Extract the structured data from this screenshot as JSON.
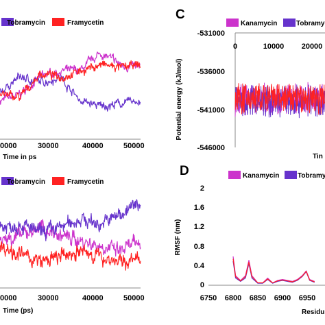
{
  "chart_data": [
    {
      "id": "A",
      "type": "line",
      "legend": [
        "Tobramycin",
        "Framycetin"
      ],
      "xlabel": "Time in ps",
      "x_ticks": [
        "0000",
        "30000",
        "40000",
        "50000"
      ],
      "xlim": [
        15000,
        50000
      ],
      "series": [
        {
          "name": "Kanamycin",
          "color": "#cc33cc",
          "shape": "kanamycin-rmsd",
          "points": [
            [
              15000,
              0.3
            ],
            [
              20000,
              0.32
            ],
            [
              25000,
              0.38
            ],
            [
              30000,
              0.4
            ],
            [
              35000,
              0.4
            ],
            [
              40000,
              0.46
            ],
            [
              45000,
              0.42
            ],
            [
              50000,
              0.41
            ]
          ]
        },
        {
          "name": "Tobramycin",
          "color": "#6633cc",
          "shape": "tobramycin-rmsd",
          "points": [
            [
              15000,
              0.33
            ],
            [
              20000,
              0.38
            ],
            [
              25000,
              0.36
            ],
            [
              30000,
              0.38
            ],
            [
              35000,
              0.3
            ],
            [
              40000,
              0.28
            ],
            [
              45000,
              0.29
            ],
            [
              50000,
              0.3
            ]
          ]
        },
        {
          "name": "Framycetin",
          "color": "#ff2222",
          "shape": "framycetin-rmsd",
          "points": [
            [
              15000,
              0.32
            ],
            [
              20000,
              0.31
            ],
            [
              25000,
              0.39
            ],
            [
              30000,
              0.38
            ],
            [
              35000,
              0.4
            ],
            [
              40000,
              0.42
            ],
            [
              45000,
              0.41
            ],
            [
              50000,
              0.42
            ]
          ]
        }
      ]
    },
    {
      "id": "B",
      "type": "line",
      "legend": [
        "Tobramycin",
        "Framycetin"
      ],
      "xlabel": "Time (ps)",
      "x_ticks": [
        "0000",
        "30000",
        "40000",
        "50000"
      ],
      "xlim": [
        15000,
        50000
      ],
      "series": [
        {
          "name": "Kanamycin",
          "color": "#cc33cc",
          "shape": "kanamycin-rg",
          "points": [
            [
              15000,
              0.5
            ],
            [
              20000,
              0.52
            ],
            [
              25000,
              0.55
            ],
            [
              30000,
              0.52
            ],
            [
              35000,
              0.5
            ],
            [
              40000,
              0.48
            ],
            [
              45000,
              0.46
            ],
            [
              50000,
              0.5
            ]
          ]
        },
        {
          "name": "Tobramycin",
          "color": "#6633cc",
          "shape": "tobramycin-rg",
          "points": [
            [
              15000,
              0.55
            ],
            [
              20000,
              0.56
            ],
            [
              25000,
              0.53
            ],
            [
              30000,
              0.55
            ],
            [
              35000,
              0.58
            ],
            [
              40000,
              0.56
            ],
            [
              45000,
              0.6
            ],
            [
              50000,
              0.64
            ]
          ]
        },
        {
          "name": "Framycetin",
          "color": "#ff2222",
          "shape": "framycetin-rg",
          "points": [
            [
              15000,
              0.48
            ],
            [
              20000,
              0.45
            ],
            [
              25000,
              0.42
            ],
            [
              30000,
              0.44
            ],
            [
              35000,
              0.46
            ],
            [
              40000,
              0.44
            ],
            [
              45000,
              0.42
            ],
            [
              50000,
              0.43
            ]
          ]
        }
      ]
    },
    {
      "id": "C",
      "type": "line",
      "legend": [
        "Kanamycin",
        "Tobramycin"
      ],
      "ylabel": "Potential energy (kJ/mol)",
      "xlabel": "Tin",
      "y_ticks": [
        "-531000",
        "-536000",
        "-541000",
        "-546000"
      ],
      "x_ticks": [
        "0",
        "10000",
        "20000"
      ],
      "ylim": [
        -546000,
        -531000
      ],
      "xlim": [
        0,
        26000
      ],
      "series": [
        {
          "name": "Kanamycin",
          "color": "#cc33cc",
          "mean": -539700
        },
        {
          "name": "Tobramycin",
          "color": "#6633cc",
          "mean": -539900
        },
        {
          "name": "Framycetin",
          "color": "#ff2222",
          "mean": -539600
        }
      ]
    },
    {
      "id": "D",
      "type": "line",
      "legend": [
        "Kanamycin",
        "Tobramycin"
      ],
      "ylabel": "RMSF (nm)",
      "xlabel": "Residu",
      "y_ticks": [
        "0",
        "0.4",
        "0.8",
        "1.2",
        "1.6",
        "2"
      ],
      "x_ticks": [
        "6750",
        "6800",
        "6850",
        "6900",
        "6950"
      ],
      "ylim": [
        0,
        2
      ],
      "xlim": [
        6750,
        6965
      ],
      "series": [
        {
          "name": "Kanamycin",
          "color": "#cc33cc",
          "points": [
            [
              6800,
              0.6
            ],
            [
              6805,
              0.2
            ],
            [
              6815,
              0.1
            ],
            [
              6825,
              0.2
            ],
            [
              6832,
              0.52
            ],
            [
              6838,
              0.2
            ],
            [
              6850,
              0.05
            ],
            [
              6860,
              0.05
            ],
            [
              6870,
              0.15
            ],
            [
              6880,
              0.05
            ],
            [
              6890,
              0.1
            ],
            [
              6900,
              0.12
            ],
            [
              6910,
              0.1
            ],
            [
              6920,
              0.08
            ],
            [
              6930,
              0.12
            ],
            [
              6940,
              0.2
            ],
            [
              6948,
              0.3
            ],
            [
              6955,
              0.12
            ],
            [
              6965,
              0.08
            ]
          ]
        },
        {
          "name": "Tobramycin",
          "color": "#6633cc",
          "points": [
            [
              6800,
              0.5
            ],
            [
              6805,
              0.15
            ],
            [
              6815,
              0.08
            ],
            [
              6825,
              0.15
            ],
            [
              6832,
              0.45
            ],
            [
              6838,
              0.15
            ],
            [
              6850,
              0.04
            ],
            [
              6860,
              0.04
            ],
            [
              6870,
              0.12
            ],
            [
              6880,
              0.04
            ],
            [
              6890,
              0.08
            ],
            [
              6900,
              0.1
            ],
            [
              6910,
              0.08
            ],
            [
              6920,
              0.06
            ],
            [
              6930,
              0.1
            ],
            [
              6940,
              0.18
            ],
            [
              6948,
              0.28
            ],
            [
              6955,
              0.1
            ],
            [
              6965,
              0.06
            ]
          ]
        },
        {
          "name": "Framycetin",
          "color": "#ff2222",
          "points": [
            [
              6800,
              0.55
            ],
            [
              6805,
              0.18
            ],
            [
              6815,
              0.09
            ],
            [
              6825,
              0.18
            ],
            [
              6832,
              0.48
            ],
            [
              6838,
              0.18
            ],
            [
              6850,
              0.05
            ],
            [
              6860,
              0.05
            ],
            [
              6870,
              0.13
            ],
            [
              6880,
              0.05
            ],
            [
              6890,
              0.09
            ],
            [
              6900,
              0.11
            ],
            [
              6910,
              0.09
            ],
            [
              6920,
              0.07
            ],
            [
              6930,
              0.11
            ],
            [
              6940,
              0.19
            ],
            [
              6948,
              0.29
            ],
            [
              6955,
              0.11
            ],
            [
              6965,
              0.07
            ]
          ]
        }
      ]
    }
  ]
}
